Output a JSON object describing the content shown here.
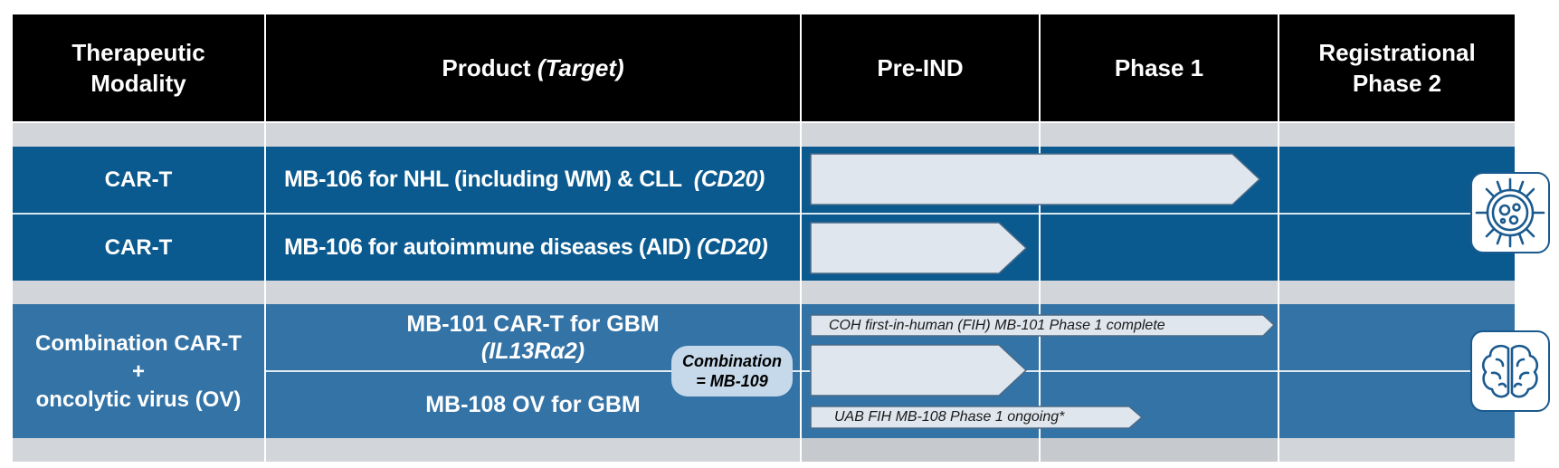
{
  "header": {
    "modality": "Therapeutic\nModality",
    "product_prefix": "Product",
    "product_target": "(Target)",
    "pre_ind": "Pre-IND",
    "phase1": "Phase 1",
    "phase2": "Registrational\nPhase 2"
  },
  "rows": [
    {
      "modality": "CAR-T",
      "product": "MB-106 for NHL (including WM) & CLL",
      "target": "(CD20)",
      "progress_end": "Phase 1"
    },
    {
      "modality": "CAR-T",
      "product": "MB-106 for autoimmune diseases (AID)",
      "target": "(CD20)",
      "progress_end": "Pre-IND"
    }
  ],
  "combination": {
    "modality_line1": "Combination CAR-T",
    "modality_line2": "+",
    "modality_line3": "oncolytic virus (OV)",
    "product_a": "MB-101 CAR-T for GBM",
    "product_a_target": "(IL13Rα2)",
    "product_b": "MB-108 OV for GBM",
    "combo_line1": "Combination",
    "combo_line2": "= MB-109",
    "note_top": "COH first-in-human (FIH) MB-101 Phase 1 complete",
    "note_bottom": "UAB FIH MB-108 Phase 1 ongoing*"
  },
  "icons": {
    "top": "virus-icon",
    "bottom": "brain-icon"
  },
  "colors": {
    "header": "#000000",
    "band_dark": "#0b5a8f",
    "band_mid": "#3473a6",
    "arrow_fill": "#dfe6ee",
    "separator": "#d2d5da"
  }
}
